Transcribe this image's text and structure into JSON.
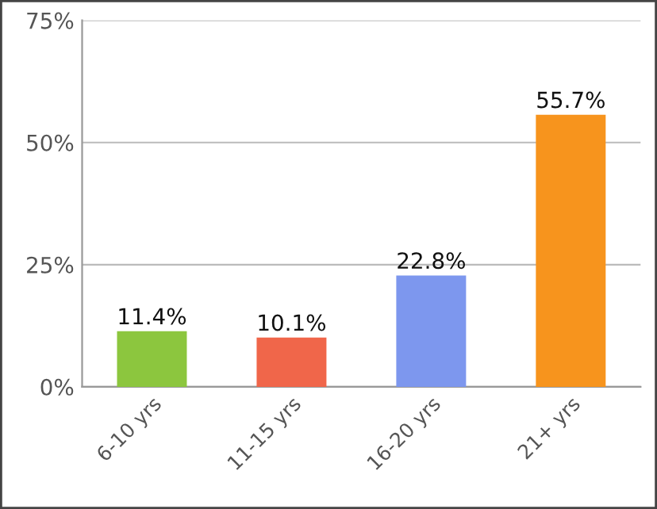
{
  "chart_data": {
    "type": "bar",
    "categories": [
      "6-10 yrs",
      "11-15 yrs",
      "16-20 yrs",
      "21+ yrs"
    ],
    "values": [
      11.4,
      10.1,
      22.8,
      55.7
    ],
    "colors": [
      "#8cc63e",
      "#f0664a",
      "#7d97ee",
      "#f7941d"
    ],
    "value_labels": [
      "11.4%",
      "10.1%",
      "22.8%",
      "55.7%"
    ],
    "ylim": [
      0,
      75
    ],
    "yticks": [
      {
        "value": 0,
        "label": "0%"
      },
      {
        "value": 25,
        "label": "25%"
      },
      {
        "value": 50,
        "label": "50%"
      },
      {
        "value": 75,
        "label": "75%"
      }
    ],
    "grid": "y",
    "legend": false
  }
}
